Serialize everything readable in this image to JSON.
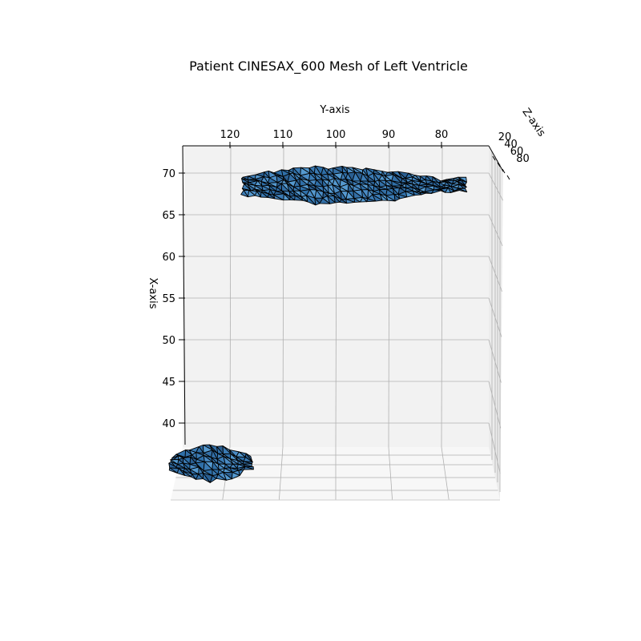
{
  "chart_data": {
    "type": "mesh3d",
    "title": "Patient CINESAX_600 Mesh of Left Ventricle",
    "xlabel": "X-axis",
    "ylabel": "Y-axis",
    "zlabel": "Z-axis",
    "x_ticks": [
      40,
      45,
      50,
      55,
      60,
      65,
      70
    ],
    "y_ticks": [
      120,
      110,
      100,
      90,
      80
    ],
    "z_ticks": [
      20,
      40,
      60,
      80
    ],
    "xlim": [
      37,
      73
    ],
    "ylim": [
      76,
      130
    ],
    "zlim": [
      10,
      85
    ],
    "grid": true,
    "colors": {
      "face": "#3b7bb4",
      "edge": "#000000",
      "pane": "#f2f2f2",
      "grid": "#b0b0b0"
    },
    "meshes": [
      {
        "name": "",
        "y_range": [
          76,
          117
        ],
        "x_center": 68.5,
        "x_half_width": 2.2
      },
      {
        "name": "",
        "y_range": [
          120,
          131
        ],
        "x_center": 34.5,
        "x_half_width": 2.6
      }
    ]
  }
}
